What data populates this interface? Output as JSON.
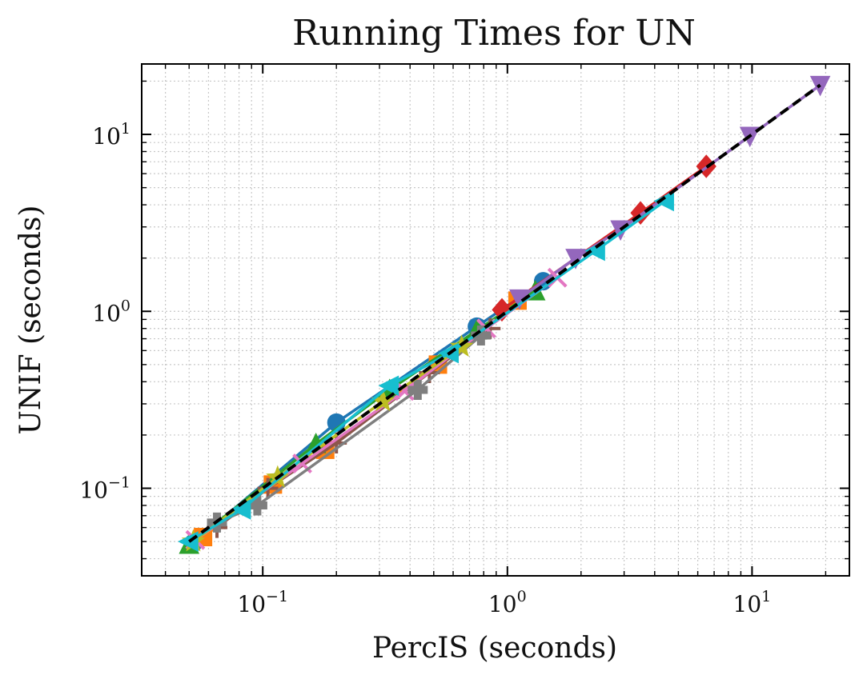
{
  "chart_data": {
    "type": "line",
    "title": "Running Times for UN",
    "xlabel": "PercIS (seconds)",
    "ylabel": "UNIF (seconds)",
    "xscale": "log",
    "yscale": "log",
    "xlim": [
      0.032,
      25
    ],
    "ylim": [
      0.032,
      25
    ],
    "grid": true,
    "legend": "none",
    "x_ticks": [
      {
        "value": 0.1,
        "base": "10",
        "exp": "−1"
      },
      {
        "value": 1,
        "base": "10",
        "exp": "0"
      },
      {
        "value": 10,
        "base": "10",
        "exp": "1"
      }
    ],
    "y_ticks": [
      {
        "value": 0.1,
        "base": "10",
        "exp": "−1"
      },
      {
        "value": 1,
        "base": "10",
        "exp": "0"
      },
      {
        "value": 10,
        "base": "10",
        "exp": "1"
      }
    ],
    "reference_line": {
      "x": [
        0.05,
        19
      ],
      "y": [
        0.05,
        19
      ],
      "color": "#000000",
      "style": "dashed"
    },
    "series": [
      {
        "color": "#1f77b4",
        "marker": "circle",
        "x": [
          0.052,
          0.2,
          0.75,
          1.4
        ],
        "y": [
          0.049,
          0.235,
          0.82,
          1.48
        ]
      },
      {
        "color": "#ff7f0e",
        "marker": "square",
        "x": [
          0.057,
          0.11,
          0.18,
          0.52,
          1.1
        ],
        "y": [
          0.053,
          0.105,
          0.165,
          0.5,
          1.15
        ]
      },
      {
        "color": "#2ca02c",
        "marker": "triangle-up",
        "x": [
          0.05,
          0.165,
          0.33,
          0.75,
          1.3
        ],
        "y": [
          0.048,
          0.178,
          0.36,
          0.78,
          1.3
        ]
      },
      {
        "color": "#d62728",
        "marker": "diamond",
        "x": [
          0.95,
          3.5,
          6.5
        ],
        "y": [
          1.02,
          3.6,
          6.6
        ]
      },
      {
        "color": "#9467bd",
        "marker": "triangle-down",
        "x": [
          1.12,
          1.9,
          2.9,
          9.8,
          19
        ],
        "y": [
          1.18,
          2.0,
          2.9,
          9.8,
          19
        ]
      },
      {
        "color": "#8c564b",
        "marker": "plus",
        "x": [
          0.065,
          0.105,
          0.2,
          0.48,
          0.85
        ],
        "y": [
          0.06,
          0.1,
          0.18,
          0.45,
          0.8
        ]
      },
      {
        "color": "#e377c2",
        "marker": "x",
        "x": [
          0.053,
          0.145,
          0.38,
          0.82,
          1.6
        ],
        "y": [
          0.051,
          0.138,
          0.355,
          0.8,
          1.55
        ]
      },
      {
        "color": "#7f7f7f",
        "marker": "plus-filled",
        "x": [
          0.065,
          0.095,
          0.43,
          0.78
        ],
        "y": [
          0.064,
          0.08,
          0.36,
          0.73
        ]
      },
      {
        "color": "#bcbd22",
        "marker": "star",
        "x": [
          0.052,
          0.115,
          0.31,
          0.65
        ],
        "y": [
          0.05,
          0.115,
          0.31,
          0.63
        ]
      },
      {
        "color": "#17becf",
        "marker": "triangle-left",
        "x": [
          0.05,
          0.082,
          0.33,
          0.58,
          2.3,
          4.4
        ],
        "y": [
          0.05,
          0.076,
          0.38,
          0.58,
          2.2,
          4.2
        ]
      }
    ]
  }
}
